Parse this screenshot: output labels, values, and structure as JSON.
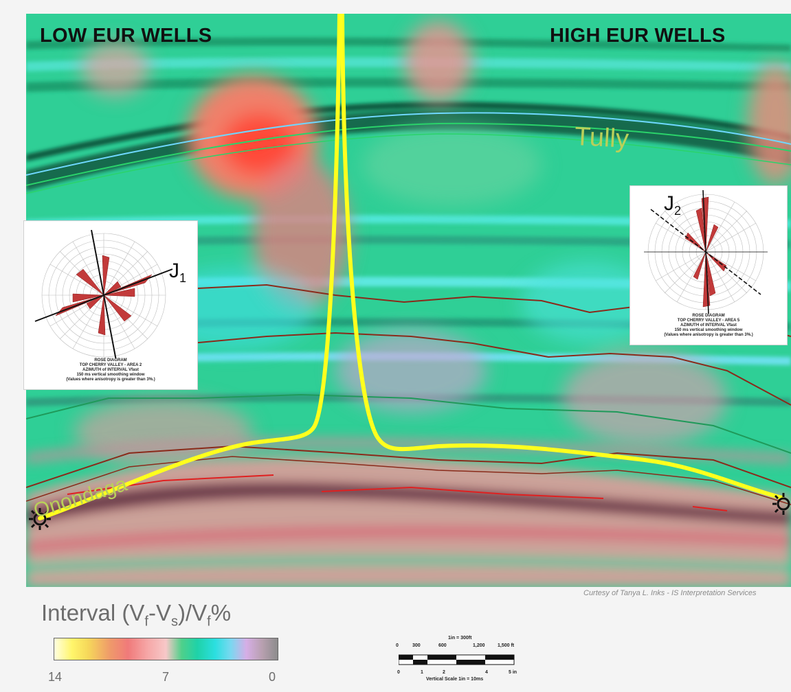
{
  "header": {
    "left_title": "LOW EUR WELLS",
    "right_title": "HIGH EUR WELLS"
  },
  "horizons": {
    "tully": "Tully",
    "onondaga": "Onondaga"
  },
  "rose_diagrams": [
    {
      "label": "J",
      "label_sub": "1",
      "caption": [
        "ROSE DIAGRAM",
        "TOP CHERRY VALLEY - AREA 2",
        "AZIMUTH of INTERVAL Vfast",
        "150 ms vertical smoothing window",
        "(Values where anisotropy is greater than 3%.)"
      ]
    },
    {
      "label": "J",
      "label_sub": "2",
      "caption": [
        "ROSE DIAGRAM",
        "TOP CHERRY VALLEY - AREA 5",
        "AZIMUTH of INTERVAL Vfast",
        "150 ms vertical smoothing window",
        "(Values where anisotropy is greater than 3%.)"
      ]
    }
  ],
  "credit": "Curtesy of Tanya L. Inks - IS Interpretation Services",
  "legend": {
    "title_pre": "Interval (V",
    "sub_f": "f",
    "dash": "-V",
    "sub_s": "s",
    "slash": ")/V",
    "sub_f2": "f",
    "pct": "%",
    "ticks": [
      "14",
      "7",
      "0"
    ]
  },
  "scale_bar": {
    "top_label": "1in = 300ft",
    "ft_ticks": [
      "0",
      "300",
      "600",
      "1,200",
      "1,500 ft"
    ],
    "in_ticks": [
      "0",
      "1",
      "2",
      "4",
      "5 in"
    ],
    "vertical": "Vertical Scale 1in = 10ms"
  },
  "colors": {
    "well_path": "#ffff1e",
    "seismic_green": "#28c888",
    "seismic_cyan": "#30d8d8",
    "horizon_red": "#e02020",
    "horizon_brown": "#8a2a1a"
  }
}
